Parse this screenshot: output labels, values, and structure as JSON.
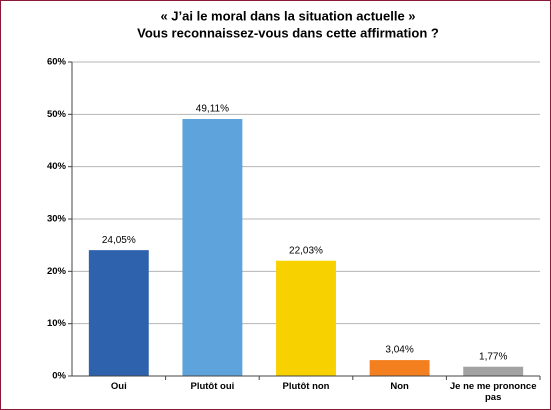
{
  "chart_data": {
    "type": "bar",
    "title": "« J’ai le moral dans la situation actuelle »",
    "subtitle": "Vous reconnaissez-vous dans cette affirmation ?",
    "categories": [
      "Oui",
      "Plutôt oui",
      "Plutôt non",
      "Non",
      "Je ne me prononce pas"
    ],
    "values": [
      24.05,
      49.11,
      22.03,
      3.04,
      1.77
    ],
    "value_labels": [
      "24,05%",
      "49,11%",
      "22,03%",
      "3,04%",
      "1,77%"
    ],
    "colors": [
      "#2e62ad",
      "#5fa3dc",
      "#f8d100",
      "#f47f1f",
      "#a2a2a2"
    ],
    "ylim": [
      0,
      60
    ],
    "yticks": [
      {
        "value": 0,
        "label": "0%"
      },
      {
        "value": 10,
        "label": "10%"
      },
      {
        "value": 20,
        "label": "20%"
      },
      {
        "value": 30,
        "label": "30%"
      },
      {
        "value": 40,
        "label": "40%"
      },
      {
        "value": 50,
        "label": "50%"
      },
      {
        "value": 60,
        "label": "60%"
      }
    ],
    "grid": true
  }
}
